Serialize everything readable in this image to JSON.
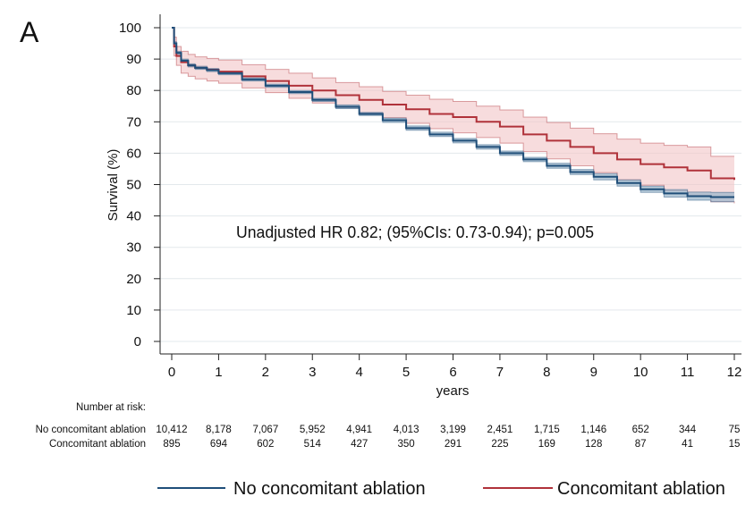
{
  "panel_label": "A",
  "chart_data": {
    "type": "line",
    "subtype": "kaplan-meier",
    "xlabel": "years",
    "ylabel": "Survival (%)",
    "xlim": [
      0,
      12
    ],
    "ylim": [
      0,
      100
    ],
    "x_ticks": [
      0,
      1,
      2,
      3,
      4,
      5,
      6,
      7,
      8,
      9,
      10,
      11,
      12
    ],
    "y_ticks": [
      0,
      10,
      20,
      30,
      40,
      50,
      60,
      70,
      80,
      90,
      100
    ],
    "grid": true,
    "annotation": "Unadjusted HR 0.82; (95%CIs: 0.73-0.94); p=0.005",
    "legend_position": "bottom",
    "series": [
      {
        "name": "No concomitant ablation",
        "color": "#1f4e79",
        "ci_color": "#9fb8cc",
        "x": [
          0,
          0.05,
          0.1,
          0.2,
          0.35,
          0.5,
          0.75,
          1,
          1.5,
          2,
          2.5,
          3,
          3.5,
          4,
          4.5,
          5,
          5.5,
          6,
          6.5,
          7,
          7.5,
          8,
          8.5,
          9,
          9.5,
          10,
          10.5,
          11,
          11.5,
          12
        ],
        "y": [
          100,
          95,
          92,
          89.5,
          88,
          87.2,
          86.5,
          85.5,
          83.5,
          81.5,
          79.5,
          77,
          74.8,
          72.5,
          70.5,
          68,
          66,
          64,
          62,
          60,
          58,
          56,
          54,
          52.5,
          50.5,
          48.5,
          47.2,
          46.3,
          46,
          46
        ],
        "ci_lower": [
          100,
          94.5,
          91.5,
          89,
          87.5,
          86.7,
          86,
          85,
          83,
          81,
          79,
          76.5,
          74.2,
          72,
          69.8,
          67.3,
          65.3,
          63.3,
          61.3,
          59.3,
          57.3,
          55.2,
          53.2,
          51.5,
          49.5,
          47.5,
          46,
          45,
          44.5,
          44.5
        ],
        "ci_upper": [
          100,
          95.5,
          92.5,
          90,
          88.5,
          87.7,
          87,
          86,
          84,
          82,
          80,
          77.5,
          75.4,
          73,
          71.2,
          68.7,
          66.7,
          64.7,
          62.7,
          60.7,
          58.7,
          56.8,
          54.8,
          53.5,
          51.5,
          49.5,
          48.4,
          47.6,
          47.5,
          47.5
        ],
        "at_risk": [
          "10,412",
          "8,178",
          "7,067",
          "5,952",
          "4,941",
          "4,013",
          "3,199",
          "2,451",
          "1,715",
          "1,146",
          "652",
          "344",
          "75"
        ]
      },
      {
        "name": "Concomitant ablation",
        "color": "#b0323a",
        "ci_color": "#f2c4c7",
        "x": [
          0,
          0.05,
          0.1,
          0.2,
          0.35,
          0.5,
          0.75,
          1,
          1.5,
          2,
          2.5,
          3,
          3.5,
          4,
          4.5,
          5,
          5.5,
          6,
          6.5,
          7,
          7.5,
          8,
          8.5,
          9,
          9.5,
          10,
          10.5,
          11,
          11.5,
          12
        ],
        "y": [
          100,
          94,
          91,
          89,
          88,
          87.2,
          86.6,
          86,
          84.5,
          83,
          81.5,
          80,
          78.5,
          77,
          75.5,
          74,
          72.5,
          71.5,
          70,
          68.5,
          66,
          64,
          62,
          60,
          58,
          56.5,
          55.5,
          54.5,
          52,
          51.5
        ],
        "ci_lower": [
          100,
          91,
          88,
          85.5,
          84.5,
          83.7,
          83,
          82.3,
          80.8,
          79.3,
          77.5,
          76,
          74.5,
          72.8,
          71.3,
          69.5,
          67.8,
          66.5,
          65,
          63.2,
          60.5,
          58.2,
          56,
          53.8,
          51.5,
          49.8,
          48,
          46.5,
          44.5,
          44
        ],
        "ci_upper": [
          100,
          97,
          94,
          92.5,
          91.5,
          90.7,
          90.2,
          89.7,
          88.2,
          86.7,
          85.5,
          84,
          82.5,
          81.2,
          79.7,
          78.5,
          77.2,
          76.5,
          75,
          73.8,
          71.5,
          69.8,
          68,
          66.2,
          64.5,
          63.2,
          62.5,
          62,
          59,
          59
        ],
        "at_risk": [
          "895",
          "694",
          "602",
          "514",
          "427",
          "350",
          "291",
          "225",
          "169",
          "128",
          "87",
          "41",
          "15"
        ]
      }
    ],
    "risk_table": {
      "title": "Number at risk:"
    }
  }
}
